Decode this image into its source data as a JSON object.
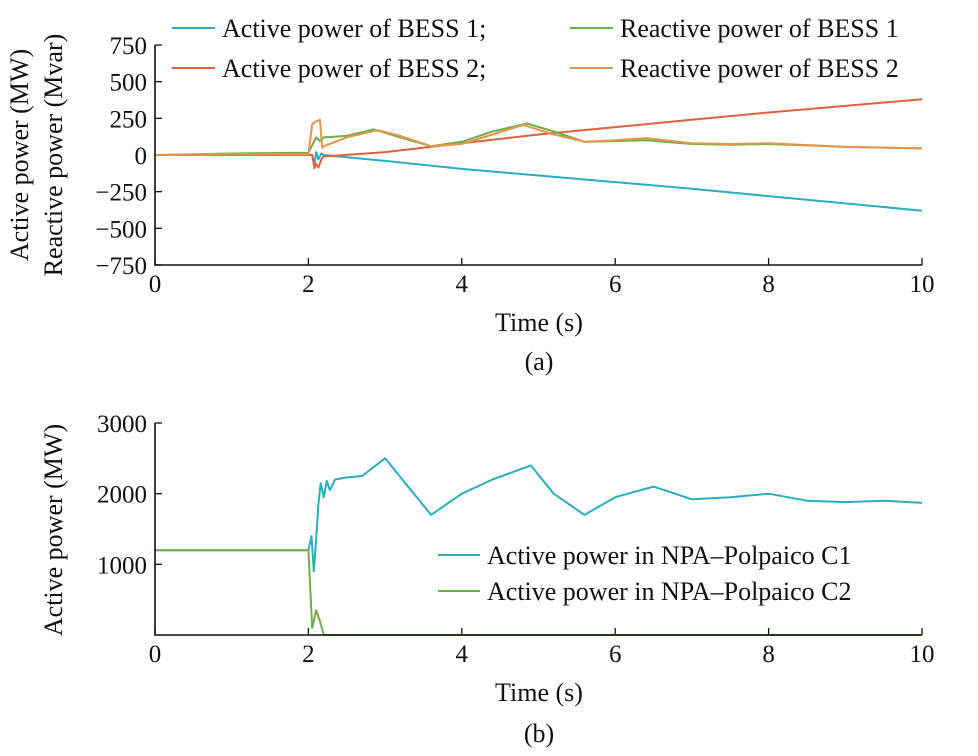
{
  "colors": {
    "teal": "#2AADC0",
    "red": "#E0603C",
    "green": "#6DB048",
    "orange": "#E8944A"
  },
  "chart_data": [
    {
      "type": "line",
      "panel_label": "(a)",
      "xlabel": "Time (s)",
      "ylabel_line1": "Active power (MW)",
      "ylabel_line2": "Reactive power (Mvar)",
      "xlim": [
        0,
        10
      ],
      "ylim": [
        -750,
        750
      ],
      "xticks": [
        0,
        2,
        4,
        6,
        8,
        10
      ],
      "yticks": [
        750,
        500,
        250,
        0,
        -250,
        -500,
        -750
      ],
      "grid": false,
      "legend_position": "top",
      "legend": [
        "Active power of BESS 1;",
        "Active power of BESS 2;",
        "Reactive power of BESS 1",
        "Reactive power of BESS 2"
      ],
      "series": [
        {
          "name": "Active power of BESS 1",
          "color": "#2AADC0",
          "x": [
            0,
            1,
            2.0,
            2.05,
            2.08,
            2.1,
            2.13,
            2.17,
            2.2,
            3,
            4,
            5,
            6,
            7,
            8,
            9,
            10
          ],
          "y": [
            0,
            0,
            0,
            0,
            -70,
            20,
            -30,
            10,
            0,
            -40,
            -95,
            -140,
            -185,
            -230,
            -280,
            -330,
            -380
          ]
        },
        {
          "name": "Active power of BESS 2",
          "color": "#E0603C",
          "x": [
            0,
            1,
            2.0,
            2.05,
            2.08,
            2.1,
            2.13,
            2.17,
            2.2,
            3,
            4,
            5,
            6,
            7,
            8,
            9,
            10
          ],
          "y": [
            0,
            0,
            0,
            0,
            -90,
            -60,
            -85,
            -30,
            -10,
            20,
            80,
            140,
            190,
            240,
            290,
            335,
            380
          ]
        },
        {
          "name": "Reactive power of BESS 1",
          "color": "#6DB048",
          "x": [
            0,
            1,
            2.0,
            2.1,
            2.15,
            2.2,
            2.5,
            2.85,
            3.2,
            3.6,
            4.0,
            4.4,
            4.85,
            5.2,
            5.6,
            6.0,
            6.4,
            7.0,
            7.5,
            8.0,
            9.0,
            10
          ],
          "y": [
            0,
            10,
            15,
            120,
            95,
            120,
            130,
            175,
            120,
            60,
            90,
            160,
            215,
            160,
            90,
            95,
            100,
            75,
            70,
            75,
            55,
            45
          ]
        },
        {
          "name": "Reactive power of BESS 2",
          "color": "#E8944A",
          "x": [
            0,
            1,
            2.0,
            2.05,
            2.1,
            2.15,
            2.18,
            2.2,
            2.5,
            2.9,
            3.2,
            3.6,
            4.0,
            4.4,
            4.8,
            5.2,
            5.6,
            6.0,
            6.4,
            7.0,
            7.5,
            8.0,
            9.0,
            10
          ],
          "y": [
            0,
            5,
            5,
            210,
            230,
            240,
            50,
            60,
            120,
            170,
            130,
            60,
            75,
            140,
            205,
            140,
            90,
            100,
            115,
            80,
            75,
            80,
            55,
            45
          ]
        }
      ]
    },
    {
      "type": "line",
      "panel_label": "(b)",
      "xlabel": "Time (s)",
      "ylabel": "Active power (MW)",
      "xlim": [
        0,
        10
      ],
      "ylim": [
        0,
        3000
      ],
      "xticks": [
        0,
        2,
        4,
        6,
        8,
        10
      ],
      "yticks": [
        3000,
        2000,
        1000
      ],
      "grid": false,
      "legend_position": "right",
      "legend": [
        "Active power in NPA–Polpaico C1",
        "Active power in NPA–Polpaico C2"
      ],
      "series": [
        {
          "name": "Active power in NPA–Polpaico C1",
          "color": "#2AADC0",
          "x": [
            0,
            1,
            2.0,
            2.04,
            2.07,
            2.1,
            2.13,
            2.16,
            2.2,
            2.24,
            2.28,
            2.35,
            2.5,
            2.7,
            3.0,
            3.3,
            3.6,
            4.0,
            4.4,
            4.9,
            5.2,
            5.6,
            6.0,
            6.5,
            7.0,
            7.5,
            8.0,
            8.5,
            9.0,
            9.5,
            10
          ],
          "y": [
            1200,
            1200,
            1200,
            1400,
            900,
            1350,
            1850,
            2150,
            1950,
            2180,
            2050,
            2200,
            2230,
            2250,
            2500,
            2100,
            1700,
            2000,
            2200,
            2400,
            2000,
            1700,
            1950,
            2100,
            1920,
            1950,
            2000,
            1900,
            1880,
            1900,
            1870
          ]
        },
        {
          "name": "Active power in NPA–Polpaico C2",
          "color": "#6DB048",
          "x": [
            0,
            1,
            2.0,
            2.05,
            2.1,
            2.15,
            2.2,
            10
          ],
          "y": [
            1200,
            1200,
            1200,
            100,
            350,
            200,
            0,
            0
          ]
        }
      ]
    }
  ]
}
